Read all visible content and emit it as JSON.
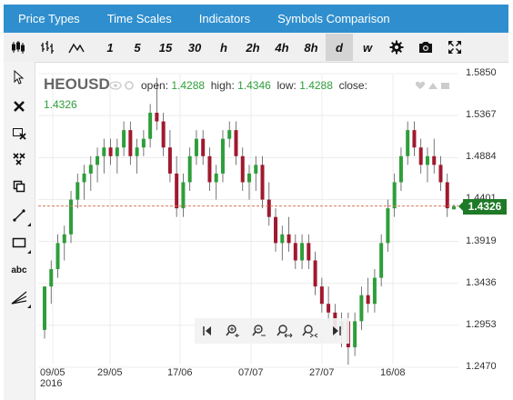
{
  "menu": [
    "Price Types",
    "Time Scales",
    "Indicators",
    "Symbols Comparison"
  ],
  "timeframes": [
    "1",
    "5",
    "15",
    "30",
    "h",
    "2h",
    "4h",
    "8h",
    "d",
    "w"
  ],
  "active_timeframe": "d",
  "symbol": "HEOUSD",
  "ohlc": {
    "open_label": "open:",
    "open": "1.4288",
    "high_label": "high:",
    "high": "1.4346",
    "low_label": "low:",
    "low": "1.4288",
    "close_label": "close:",
    "close": "1.4326"
  },
  "last_price": "1.4326",
  "colors": {
    "up": "#2e9e3a",
    "down": "#a0192f",
    "accent": "#2f8fce",
    "last_badge": "#1f7a27"
  },
  "chart_data": {
    "type": "candlestick",
    "y_ticks": [
      "1.5850",
      "1.5367",
      "1.4884",
      "1.4401",
      "1.3919",
      "1.3436",
      "1.2953",
      "1.2470"
    ],
    "x_ticks": [
      {
        "label": "09/05",
        "sub": "2016"
      },
      {
        "label": "29/05",
        "sub": ""
      },
      {
        "label": "17/06",
        "sub": ""
      },
      {
        "label": "07/07",
        "sub": ""
      },
      {
        "label": "27/07",
        "sub": ""
      },
      {
        "label": "16/08",
        "sub": ""
      }
    ],
    "ylim": [
      1.247,
      1.585
    ],
    "last_price": 1.4326,
    "grid": true,
    "candles": [
      [
        1.29,
        1.34,
        1.28,
        1.34
      ],
      [
        1.34,
        1.37,
        1.32,
        1.36
      ],
      [
        1.36,
        1.4,
        1.35,
        1.39
      ],
      [
        1.39,
        1.41,
        1.37,
        1.4
      ],
      [
        1.4,
        1.45,
        1.39,
        1.44
      ],
      [
        1.44,
        1.47,
        1.43,
        1.46
      ],
      [
        1.46,
        1.48,
        1.44,
        1.47
      ],
      [
        1.47,
        1.49,
        1.45,
        1.48
      ],
      [
        1.48,
        1.5,
        1.46,
        1.49
      ],
      [
        1.49,
        1.51,
        1.47,
        1.5
      ],
      [
        1.5,
        1.51,
        1.48,
        1.49
      ],
      [
        1.49,
        1.51,
        1.47,
        1.5
      ],
      [
        1.5,
        1.53,
        1.49,
        1.52
      ],
      [
        1.52,
        1.53,
        1.48,
        1.49
      ],
      [
        1.49,
        1.51,
        1.47,
        1.5
      ],
      [
        1.5,
        1.52,
        1.49,
        1.51
      ],
      [
        1.51,
        1.55,
        1.5,
        1.54
      ],
      [
        1.54,
        1.58,
        1.52,
        1.53
      ],
      [
        1.53,
        1.54,
        1.49,
        1.5
      ],
      [
        1.5,
        1.52,
        1.46,
        1.47
      ],
      [
        1.47,
        1.49,
        1.42,
        1.43
      ],
      [
        1.43,
        1.47,
        1.42,
        1.46
      ],
      [
        1.46,
        1.5,
        1.45,
        1.49
      ],
      [
        1.49,
        1.52,
        1.48,
        1.51
      ],
      [
        1.51,
        1.52,
        1.48,
        1.49
      ],
      [
        1.49,
        1.5,
        1.45,
        1.46
      ],
      [
        1.46,
        1.48,
        1.44,
        1.47
      ],
      [
        1.47,
        1.52,
        1.46,
        1.51
      ],
      [
        1.51,
        1.53,
        1.5,
        1.52
      ],
      [
        1.52,
        1.53,
        1.48,
        1.49
      ],
      [
        1.49,
        1.5,
        1.45,
        1.46
      ],
      [
        1.46,
        1.48,
        1.44,
        1.47
      ],
      [
        1.47,
        1.49,
        1.45,
        1.48
      ],
      [
        1.48,
        1.49,
        1.43,
        1.44
      ],
      [
        1.44,
        1.46,
        1.41,
        1.42
      ],
      [
        1.42,
        1.43,
        1.38,
        1.39
      ],
      [
        1.39,
        1.41,
        1.37,
        1.4
      ],
      [
        1.4,
        1.42,
        1.38,
        1.39
      ],
      [
        1.39,
        1.4,
        1.36,
        1.37
      ],
      [
        1.37,
        1.4,
        1.36,
        1.39
      ],
      [
        1.39,
        1.4,
        1.36,
        1.37
      ],
      [
        1.37,
        1.38,
        1.33,
        1.34
      ],
      [
        1.34,
        1.35,
        1.31,
        1.32
      ],
      [
        1.32,
        1.34,
        1.3,
        1.31
      ],
      [
        1.31,
        1.32,
        1.28,
        1.29
      ],
      [
        1.29,
        1.31,
        1.27,
        1.3
      ],
      [
        1.3,
        1.31,
        1.25,
        1.27
      ],
      [
        1.27,
        1.31,
        1.26,
        1.3
      ],
      [
        1.3,
        1.34,
        1.29,
        1.33
      ],
      [
        1.33,
        1.35,
        1.31,
        1.32
      ],
      [
        1.32,
        1.36,
        1.31,
        1.35
      ],
      [
        1.35,
        1.4,
        1.34,
        1.39
      ],
      [
        1.39,
        1.44,
        1.38,
        1.43
      ],
      [
        1.43,
        1.47,
        1.42,
        1.46
      ],
      [
        1.46,
        1.5,
        1.45,
        1.49
      ],
      [
        1.49,
        1.53,
        1.48,
        1.52
      ],
      [
        1.52,
        1.53,
        1.49,
        1.5
      ],
      [
        1.5,
        1.51,
        1.47,
        1.48
      ],
      [
        1.48,
        1.5,
        1.46,
        1.49
      ],
      [
        1.49,
        1.51,
        1.47,
        1.48
      ],
      [
        1.48,
        1.49,
        1.45,
        1.46
      ],
      [
        1.46,
        1.47,
        1.42,
        1.43
      ],
      [
        1.4288,
        1.4346,
        1.4288,
        1.4326
      ]
    ]
  },
  "icons": {
    "toolbar": [
      "candles-icon",
      "bars-icon",
      "line-icon",
      "settings-icon",
      "camera-icon",
      "fullscreen-icon"
    ],
    "left": [
      "cursor-icon",
      "delete-icon",
      "select-delete-icon",
      "multi-delete-icon",
      "copy-icon",
      "trendline-icon",
      "rectangle-icon",
      "text-icon",
      "fan-icon"
    ],
    "nav": [
      "scroll-left-icon",
      "zoom-in-icon",
      "zoom-out-icon",
      "zoom-range-icon",
      "zoom-fit-icon",
      "scroll-right-icon"
    ]
  }
}
